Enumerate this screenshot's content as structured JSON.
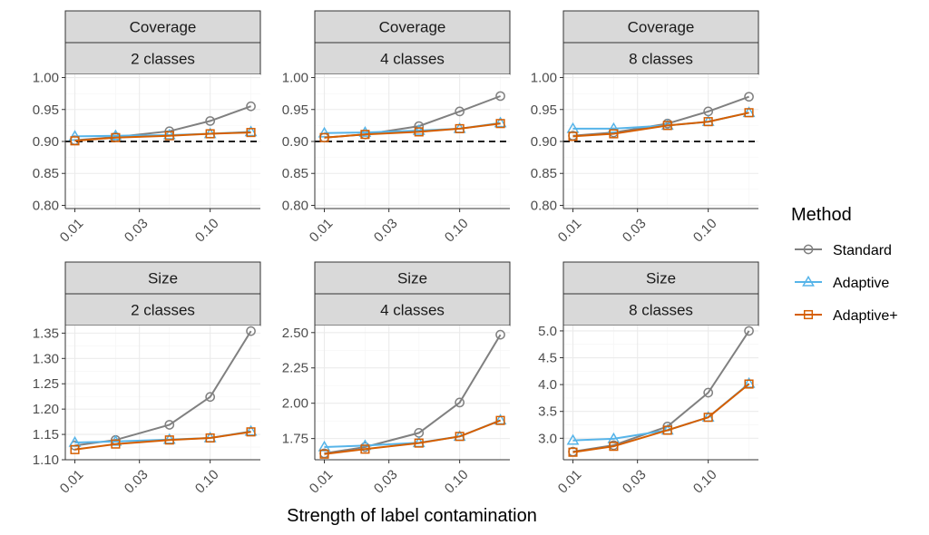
{
  "figure": {
    "xlabel": "Strength of label contamination",
    "reference_line": 0.9,
    "legend": {
      "title": "Method",
      "placement": "right",
      "entries": [
        {
          "name": "Standard",
          "color": "#808080",
          "marker": "circle"
        },
        {
          "name": "Adaptive",
          "color": "#56B4E9",
          "marker": "triangle"
        },
        {
          "name": "Adaptive+",
          "color": "#D55E00",
          "marker": "square"
        }
      ]
    }
  },
  "chart_data": [
    {
      "type": "line",
      "metric": "Coverage",
      "classes": "2 classes",
      "x": [
        0.01,
        0.02,
        0.05,
        0.1,
        0.2
      ],
      "x_scale": "log",
      "x_ticks": [
        "0.01",
        "0.03",
        "0.10"
      ],
      "x_tick_values": [
        0.01,
        0.03,
        0.1
      ],
      "ylim": [
        0.795,
        1.005
      ],
      "y_ticks": [
        "0.80",
        "0.85",
        "0.90",
        "0.95",
        "1.00"
      ],
      "y_tick_values": [
        0.8,
        0.85,
        0.9,
        0.95,
        1.0
      ],
      "reference_line": 0.9,
      "series": [
        {
          "name": "Standard",
          "values": [
            0.902,
            0.907,
            0.916,
            0.932,
            0.955
          ]
        },
        {
          "name": "Adaptive",
          "values": [
            0.908,
            0.909,
            0.91,
            0.912,
            0.915
          ]
        },
        {
          "name": "Adaptive+",
          "values": [
            0.901,
            0.906,
            0.909,
            0.912,
            0.914
          ]
        }
      ]
    },
    {
      "type": "line",
      "metric": "Coverage",
      "classes": "4 classes",
      "x": [
        0.01,
        0.02,
        0.05,
        0.1,
        0.2
      ],
      "x_scale": "log",
      "x_ticks": [
        "0.01",
        "0.03",
        "0.10"
      ],
      "x_tick_values": [
        0.01,
        0.03,
        0.1
      ],
      "ylim": [
        0.795,
        1.005
      ],
      "y_ticks": [
        "0.80",
        "0.85",
        "0.90",
        "0.95",
        "1.00"
      ],
      "y_tick_values": [
        0.8,
        0.85,
        0.9,
        0.95,
        1.0
      ],
      "reference_line": 0.9,
      "series": [
        {
          "name": "Standard",
          "values": [
            0.906,
            0.911,
            0.924,
            0.947,
            0.971
          ]
        },
        {
          "name": "Adaptive",
          "values": [
            0.913,
            0.914,
            0.917,
            0.92,
            0.929
          ]
        },
        {
          "name": "Adaptive+",
          "values": [
            0.906,
            0.911,
            0.915,
            0.92,
            0.928
          ]
        }
      ]
    },
    {
      "type": "line",
      "metric": "Coverage",
      "classes": "8 classes",
      "x": [
        0.01,
        0.02,
        0.05,
        0.1,
        0.2
      ],
      "x_scale": "log",
      "x_ticks": [
        "0.01",
        "0.03",
        "0.10"
      ],
      "x_tick_values": [
        0.01,
        0.03,
        0.1
      ],
      "ylim": [
        0.795,
        1.005
      ],
      "y_ticks": [
        "0.80",
        "0.85",
        "0.90",
        "0.95",
        "1.00"
      ],
      "y_tick_values": [
        0.8,
        0.85,
        0.9,
        0.95,
        1.0
      ],
      "reference_line": 0.9,
      "series": [
        {
          "name": "Standard",
          "values": [
            0.909,
            0.914,
            0.928,
            0.947,
            0.97
          ]
        },
        {
          "name": "Adaptive",
          "values": [
            0.92,
            0.92,
            0.925,
            0.931,
            0.945
          ]
        },
        {
          "name": "Adaptive+",
          "values": [
            0.908,
            0.912,
            0.925,
            0.931,
            0.945
          ]
        }
      ]
    },
    {
      "type": "line",
      "metric": "Size",
      "classes": "2 classes",
      "x": [
        0.01,
        0.02,
        0.05,
        0.1,
        0.2
      ],
      "x_scale": "log",
      "x_ticks": [
        "0.01",
        "0.03",
        "0.10"
      ],
      "x_tick_values": [
        0.01,
        0.03,
        0.1
      ],
      "ylim": [
        1.1,
        1.365
      ],
      "y_ticks": [
        "1.10",
        "1.15",
        "1.20",
        "1.25",
        "1.30",
        "1.35"
      ],
      "y_tick_values": [
        1.1,
        1.15,
        1.2,
        1.25,
        1.3,
        1.35
      ],
      "series": [
        {
          "name": "Standard",
          "values": [
            1.128,
            1.139,
            1.169,
            1.224,
            1.354
          ]
        },
        {
          "name": "Adaptive",
          "values": [
            1.134,
            1.136,
            1.14,
            1.143,
            1.156
          ]
        },
        {
          "name": "Adaptive+",
          "values": [
            1.12,
            1.131,
            1.139,
            1.143,
            1.155
          ]
        }
      ]
    },
    {
      "type": "line",
      "metric": "Size",
      "classes": "4 classes",
      "x": [
        0.01,
        0.02,
        0.05,
        0.1,
        0.2
      ],
      "x_scale": "log",
      "x_ticks": [
        "0.01",
        "0.03",
        "0.10"
      ],
      "x_tick_values": [
        0.01,
        0.03,
        0.1
      ],
      "ylim": [
        1.6,
        2.55
      ],
      "y_ticks": [
        "1.75",
        "2.00",
        "2.25",
        "2.50"
      ],
      "y_tick_values": [
        1.75,
        2.0,
        2.25,
        2.5
      ],
      "series": [
        {
          "name": "Standard",
          "values": [
            1.645,
            1.69,
            1.79,
            2.005,
            2.485
          ]
        },
        {
          "name": "Adaptive",
          "values": [
            1.69,
            1.7,
            1.72,
            1.765,
            1.88
          ]
        },
        {
          "name": "Adaptive+",
          "values": [
            1.64,
            1.675,
            1.718,
            1.765,
            1.878
          ]
        }
      ]
    },
    {
      "type": "line",
      "metric": "Size",
      "classes": "8 classes",
      "x": [
        0.01,
        0.02,
        0.05,
        0.1,
        0.2
      ],
      "x_scale": "log",
      "x_ticks": [
        "0.01",
        "0.03",
        "0.10"
      ],
      "x_tick_values": [
        0.01,
        0.03,
        0.1
      ],
      "ylim": [
        2.6,
        5.1
      ],
      "y_ticks": [
        "3.0",
        "3.5",
        "4.0",
        "4.5",
        "5.0"
      ],
      "y_tick_values": [
        3.0,
        3.5,
        4.0,
        4.5,
        5.0
      ],
      "series": [
        {
          "name": "Standard",
          "values": [
            2.75,
            2.87,
            3.22,
            3.85,
            5.0
          ]
        },
        {
          "name": "Adaptive",
          "values": [
            2.96,
            2.99,
            3.15,
            3.39,
            4.02
          ]
        },
        {
          "name": "Adaptive+",
          "values": [
            2.74,
            2.85,
            3.15,
            3.39,
            4.01
          ]
        }
      ]
    }
  ]
}
